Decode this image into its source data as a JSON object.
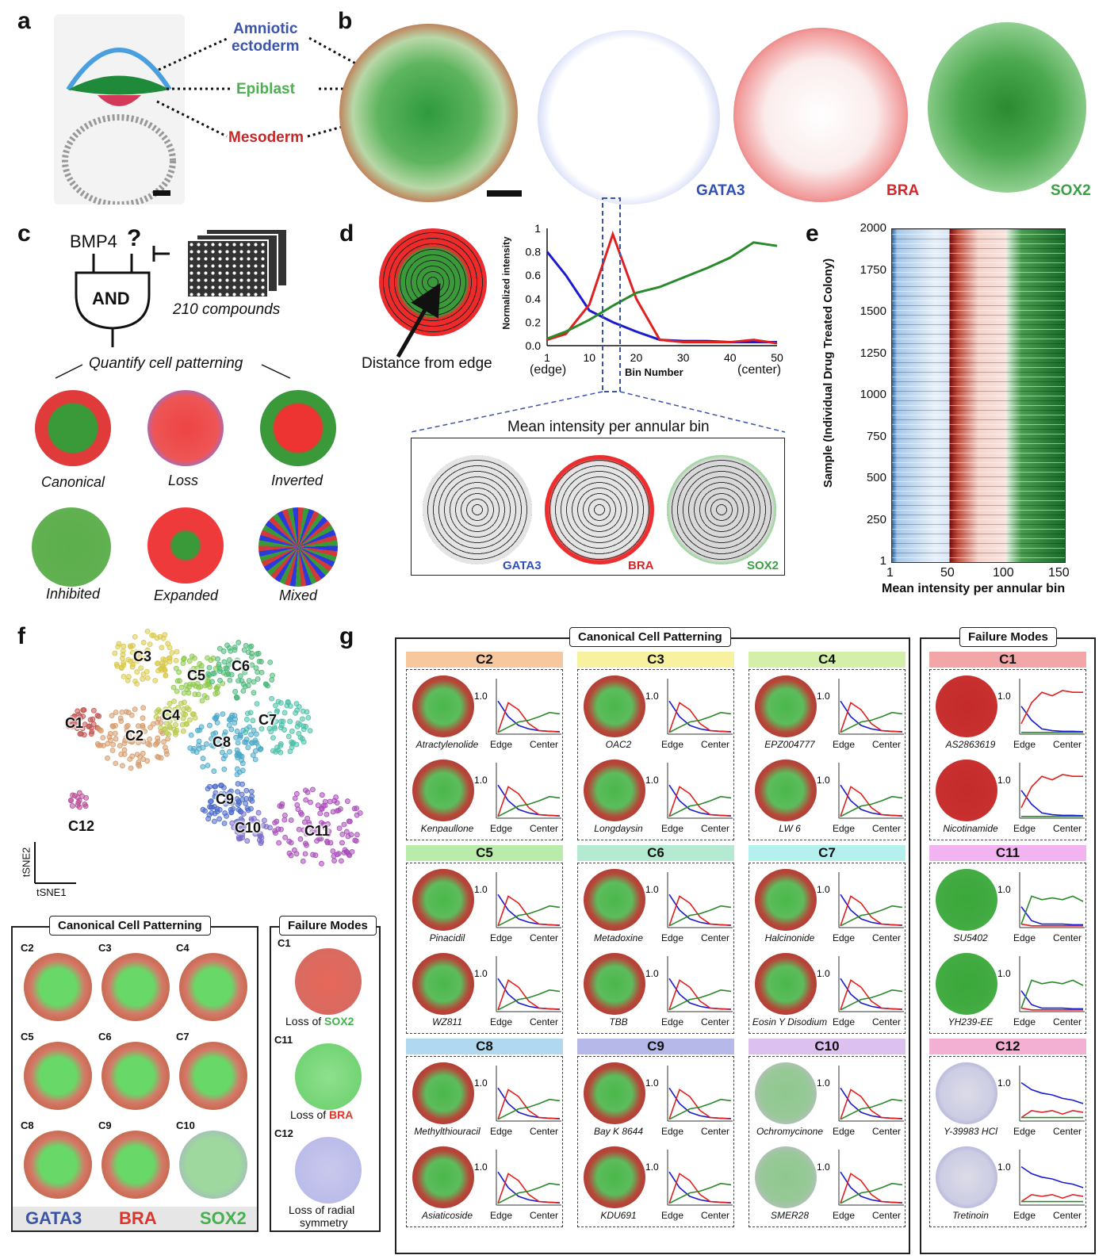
{
  "panel_labels": {
    "a": "a",
    "b": "b",
    "c": "c",
    "d": "d",
    "e": "e",
    "f": "f",
    "g": "g"
  },
  "colors": {
    "gata3": "#2f4fb8",
    "bra": "#d2262a",
    "sox2": "#3aa043",
    "amniotic": "#3a55a8",
    "epiblast": "#4caf50",
    "mesoderm": "#c62828"
  },
  "panel_a": {
    "amniotic": "Amniotic ectoderm",
    "amniotic_l1": "Amniotic",
    "amniotic_l2": "ectoderm",
    "epiblast": "Epiblast",
    "mesoderm": "Mesoderm"
  },
  "panel_b": {
    "markers": [
      "GATA3",
      "BRA",
      "SOX2"
    ]
  },
  "panel_c": {
    "bmp4": "BMP4",
    "question": "?",
    "gate": "AND",
    "compounds": "210 compounds",
    "quantify": "Quantify cell patterning",
    "phenotypes": [
      "Canonical",
      "Loss",
      "Inverted",
      "Inhibited",
      "Expanded",
      "Mixed"
    ]
  },
  "panel_d": {
    "distance_label": "Distance from edge",
    "ylabel": "Normalized intensity",
    "xlabel": "Bin Number",
    "x_edge": "(edge)",
    "x_center": "(center)",
    "annular_title": "Mean intensity per annular bin",
    "annular_markers": [
      "GATA3",
      "BRA",
      "SOX2"
    ],
    "chart_data": {
      "type": "line",
      "x": [
        1,
        5,
        10,
        15,
        20,
        25,
        30,
        35,
        40,
        45,
        50
      ],
      "xticks": [
        "1",
        "10",
        "20",
        "30",
        "40",
        "50"
      ],
      "yticks": [
        "0.0",
        "0.2",
        "0.4",
        "0.6",
        "0.8",
        "1"
      ],
      "ylim": [
        0,
        1
      ],
      "series": [
        {
          "color": "#1a1ad0",
          "values": [
            0.8,
            0.6,
            0.3,
            0.2,
            0.12,
            0.05,
            0.04,
            0.04,
            0.03,
            0.03,
            0.03
          ]
        },
        {
          "color": "#e02020",
          "values": [
            0.05,
            0.1,
            0.35,
            0.95,
            0.4,
            0.05,
            0.03,
            0.03,
            0.03,
            0.05,
            0.02
          ]
        },
        {
          "color": "#2a8a2a",
          "values": [
            0.06,
            0.12,
            0.22,
            0.34,
            0.45,
            0.5,
            0.58,
            0.66,
            0.75,
            0.88,
            0.85
          ]
        }
      ]
    }
  },
  "panel_e": {
    "ylabel": "Sample (Individual Drug Treated Colony)",
    "xlabel": "Mean intensity per annular bin",
    "yticks": [
      "2000",
      "1750",
      "1500",
      "1250",
      "1000",
      "750",
      "500",
      "250",
      "1"
    ],
    "xticks": [
      "1",
      "50",
      "100",
      "150"
    ]
  },
  "panel_f": {
    "clusters": [
      "C1",
      "C2",
      "C3",
      "C4",
      "C5",
      "C6",
      "C7",
      "C8",
      "C9",
      "C10",
      "C11",
      "C12"
    ],
    "tsne1": "tSNE1",
    "tsne2": "tSNE2",
    "canonical_title": "Canonical Cell Patterning",
    "failure_title": "Failure Modes",
    "canonical_labels": [
      "C2",
      "C3",
      "C4",
      "C5",
      "C6",
      "C7",
      "C8",
      "C9",
      "C10"
    ],
    "failure_labels": [
      "C1",
      "C11",
      "C12"
    ],
    "failure_desc": [
      {
        "pre": "Loss of ",
        "marker": "SOX2"
      },
      {
        "pre": "Loss of ",
        "marker": "BRA"
      },
      {
        "pre": "Loss of radial",
        "marker": ""
      }
    ],
    "failure_desc_extra": "symmetry",
    "legend": [
      "GATA3",
      "BRA",
      "SOX2"
    ]
  },
  "panel_g": {
    "canonical_title": "Canonical Cell Patterning",
    "failure_title": "Failure Modes",
    "edge": "Edge",
    "center": "Center",
    "ytick": "1.0",
    "groups": [
      {
        "id": "C2",
        "color": "#f7c8a0",
        "drugs": [
          "Atractylenolide",
          "Kenpaullone"
        ]
      },
      {
        "id": "C3",
        "color": "#f8f2a0",
        "drugs": [
          "OAC2",
          "Longdaysin"
        ]
      },
      {
        "id": "C4",
        "color": "#d4f0a8",
        "drugs": [
          "EPZ004777",
          "LW 6"
        ]
      },
      {
        "id": "C5",
        "color": "#b9ecaa",
        "drugs": [
          "Pinacidil",
          "WZ811"
        ]
      },
      {
        "id": "C6",
        "color": "#b4ead2",
        "drugs": [
          "Metadoxine",
          "TBB"
        ]
      },
      {
        "id": "C7",
        "color": "#b4f0ee",
        "drugs": [
          "Halcinonide",
          "Eosin Y Disodium"
        ]
      },
      {
        "id": "C8",
        "color": "#b0d8f0",
        "drugs": [
          "Methylthiouracil",
          "Asiaticoside"
        ]
      },
      {
        "id": "C9",
        "color": "#b6b8ea",
        "drugs": [
          "Bay K 8644",
          "KDU691"
        ]
      },
      {
        "id": "C10",
        "color": "#dcc0f0",
        "drugs": [
          "Ochromycinone",
          "SMER28"
        ]
      },
      {
        "id": "C1",
        "color": "#f2a6a8",
        "drugs": [
          "AS2863619",
          "Nicotinamide"
        ]
      },
      {
        "id": "C11",
        "color": "#f2b4f0",
        "drugs": [
          "SU5402",
          "YH239-EE"
        ]
      },
      {
        "id": "C12",
        "color": "#f4b0d2",
        "drugs": [
          "Y-39983 HCl",
          "Tretinoin"
        ]
      }
    ]
  }
}
